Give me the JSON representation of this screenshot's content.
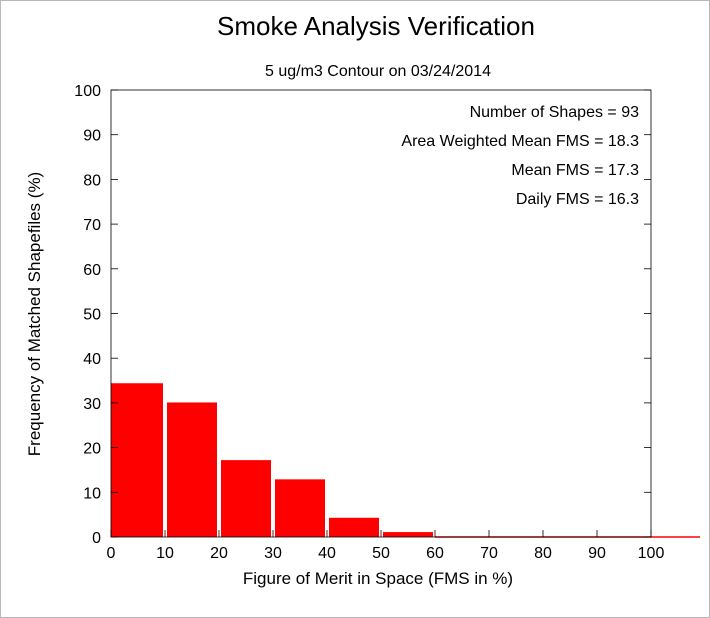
{
  "chart_data": {
    "type": "bar",
    "title": "Smoke Analysis Verification",
    "subtitle": "5 ug/m3 Contour on 03/24/2014",
    "xlabel": "Figure of Merit in Space (FMS in %)",
    "ylabel": "Frequency of Matched Shapefiles (%)",
    "xlim": [
      0,
      100
    ],
    "ylim": [
      0,
      100
    ],
    "x_ticks": [
      "0",
      "10",
      "20",
      "30",
      "40",
      "50",
      "60",
      "70",
      "80",
      "90",
      "100"
    ],
    "y_ticks": [
      "0",
      "10",
      "20",
      "30",
      "40",
      "50",
      "60",
      "70",
      "80",
      "90",
      "100"
    ],
    "bins": [
      {
        "x0": 0,
        "x1": 10,
        "value": 34.4
      },
      {
        "x0": 10,
        "x1": 20,
        "value": 30.1
      },
      {
        "x0": 20,
        "x1": 30,
        "value": 17.2
      },
      {
        "x0": 30,
        "x1": 40,
        "value": 12.9
      },
      {
        "x0": 40,
        "x1": 50,
        "value": 4.3
      },
      {
        "x0": 50,
        "x1": 60,
        "value": 1.1
      },
      {
        "x0": 60,
        "x1": 70,
        "value": 0
      },
      {
        "x0": 70,
        "x1": 80,
        "value": 0
      },
      {
        "x0": 80,
        "x1": 90,
        "value": 0
      },
      {
        "x0": 90,
        "x1": 100,
        "value": 0
      }
    ],
    "bar_color": "#ff0000",
    "annotations": [
      "Number of Shapes = 93",
      "Area Weighted Mean FMS = 18.3",
      "Mean FMS = 17.3",
      "Daily FMS = 16.3"
    ],
    "grid": false
  }
}
